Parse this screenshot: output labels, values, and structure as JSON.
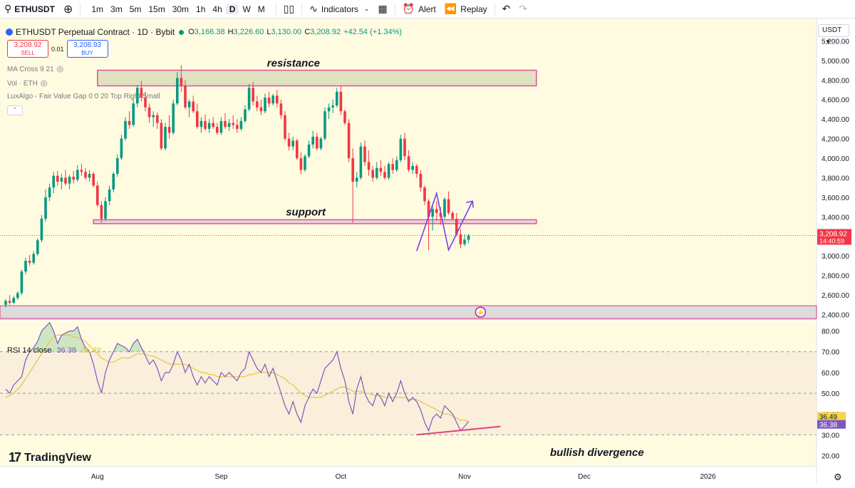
{
  "toolbar": {
    "symbol": "ETHUSDT",
    "timeframes": [
      "1m",
      "3m",
      "5m",
      "15m",
      "30m",
      "1h",
      "4h",
      "D",
      "W",
      "M"
    ],
    "active_timeframe": "D",
    "indicators_label": "Indicators",
    "alert_label": "Alert",
    "replay_label": "Replay"
  },
  "legend": {
    "title": "ETHUSDT Perpetual Contract · 1D · Bybit",
    "o_label": "O",
    "o": "3,166.38",
    "h_label": "H",
    "h": "3,226.60",
    "l_label": "L",
    "l": "3,130.00",
    "c_label": "C",
    "c": "3,208.92",
    "change": "+42.54 (+1.34%)",
    "sell_price": "3,208.92",
    "sell_label": "SELL",
    "buy_price": "3,208.93",
    "buy_label": "BUY",
    "spread": "0.01",
    "ind1": "MA Cross 9 21",
    "ind2": "Vol · ETH",
    "ind3": "LuxAlgo - Fair Value Gap 0 0 20 Top Right Small",
    "currency": "USDT"
  },
  "rsi_legend": {
    "label": "RSI 14 close",
    "v1": "36.38",
    "v2": "36.49"
  },
  "branding": {
    "logo_text": "TradingView"
  },
  "colors": {
    "up": "#089981",
    "down": "#f23645",
    "zone_border": "#e0529a",
    "zone_fill": "#d9dcb8",
    "bg": "#fffbe0",
    "rsi": "#7e57c2",
    "rsi_ma": "#e5c44a",
    "arrow": "#7b3fe4"
  },
  "chart_data": [
    {
      "type": "candlestick",
      "title": "ETHUSDT Perpetual Contract · 1D · Bybit",
      "ylim": [
        2360,
        5400
      ],
      "y_ticks": [
        2400,
        2600,
        2800,
        3000,
        3200,
        3400,
        3600,
        3800,
        4000,
        4200,
        4400,
        4600,
        4800,
        5000,
        5200
      ],
      "y_tick_labels": [
        "2,400.00",
        "2,600.00",
        "2,800.00",
        "3,000.00",
        "3,200.00",
        "3,400.00",
        "3,600.00",
        "3,800.00",
        "4,000.00",
        "4,200.00",
        "4,400.00",
        "4,600.00",
        "4,800.00",
        "5,000.00",
        "5,200.00"
      ],
      "x_labels": [
        {
          "day": 23,
          "label": "Aug"
        },
        {
          "day": 54,
          "label": "Sep"
        },
        {
          "day": 84,
          "label": "Oct"
        },
        {
          "day": 115,
          "label": "Nov"
        },
        {
          "day": 145,
          "label": "Dec"
        },
        {
          "day": 176,
          "label": "2026"
        }
      ],
      "last_price": "3,208.92",
      "countdown": "14:40:59",
      "candles": [
        [
          2500,
          2560,
          2470,
          2540
        ],
        [
          2540,
          2600,
          2500,
          2520
        ],
        [
          2520,
          2590,
          2510,
          2570
        ],
        [
          2570,
          2640,
          2550,
          2620
        ],
        [
          2620,
          2860,
          2600,
          2840
        ],
        [
          2840,
          2980,
          2810,
          2950
        ],
        [
          2950,
          3010,
          2900,
          2930
        ],
        [
          2930,
          3050,
          2910,
          3020
        ],
        [
          3020,
          3180,
          3000,
          3160
        ],
        [
          3160,
          3420,
          3140,
          3380
        ],
        [
          3380,
          3680,
          3350,
          3600
        ],
        [
          3600,
          3740,
          3560,
          3700
        ],
        [
          3700,
          3860,
          3640,
          3820
        ],
        [
          3820,
          3870,
          3720,
          3760
        ],
        [
          3760,
          3840,
          3680,
          3800
        ],
        [
          3800,
          3880,
          3720,
          3740
        ],
        [
          3740,
          3830,
          3680,
          3810
        ],
        [
          3810,
          3870,
          3740,
          3780
        ],
        [
          3780,
          3930,
          3760,
          3880
        ],
        [
          3880,
          3940,
          3820,
          3860
        ],
        [
          3860,
          3900,
          3780,
          3800
        ],
        [
          3800,
          3880,
          3760,
          3840
        ],
        [
          3840,
          3860,
          3700,
          3720
        ],
        [
          3720,
          3760,
          3500,
          3520
        ],
        [
          3520,
          3560,
          3340,
          3380
        ],
        [
          3380,
          3600,
          3360,
          3560
        ],
        [
          3560,
          3720,
          3520,
          3680
        ],
        [
          3680,
          3860,
          3650,
          3840
        ],
        [
          3840,
          4040,
          3810,
          4000
        ],
        [
          4000,
          4240,
          3980,
          4200
        ],
        [
          4200,
          4420,
          4180,
          4380
        ],
        [
          4380,
          4480,
          4300,
          4340
        ],
        [
          4340,
          4600,
          4320,
          4560
        ],
        [
          4560,
          4750,
          4520,
          4720
        ],
        [
          4720,
          4790,
          4580,
          4620
        ],
        [
          4620,
          4680,
          4480,
          4520
        ],
        [
          4520,
          4560,
          4360,
          4420
        ],
        [
          4420,
          4480,
          4320,
          4440
        ],
        [
          4440,
          4470,
          4300,
          4360
        ],
        [
          4360,
          4400,
          4080,
          4100
        ],
        [
          4100,
          4360,
          4080,
          4320
        ],
        [
          4320,
          4440,
          4200,
          4260
        ],
        [
          4260,
          4600,
          4240,
          4560
        ],
        [
          4560,
          4880,
          4540,
          4820
        ],
        [
          4820,
          4950,
          4680,
          4740
        ],
        [
          4740,
          4800,
          4500,
          4520
        ],
        [
          4520,
          4600,
          4420,
          4580
        ],
        [
          4580,
          4640,
          4460,
          4480
        ],
        [
          4480,
          4560,
          4300,
          4320
        ],
        [
          4320,
          4420,
          4260,
          4380
        ],
        [
          4380,
          4450,
          4280,
          4300
        ],
        [
          4300,
          4400,
          4260,
          4360
        ],
        [
          4360,
          4420,
          4300,
          4320
        ],
        [
          4320,
          4360,
          4240,
          4260
        ],
        [
          4260,
          4420,
          4240,
          4380
        ],
        [
          4380,
          4460,
          4300,
          4320
        ],
        [
          4320,
          4400,
          4280,
          4360
        ],
        [
          4360,
          4440,
          4300,
          4340
        ],
        [
          4340,
          4400,
          4260,
          4300
        ],
        [
          4300,
          4420,
          4280,
          4380
        ],
        [
          4380,
          4540,
          4360,
          4500
        ],
        [
          4500,
          4760,
          4480,
          4720
        ],
        [
          4720,
          4780,
          4540,
          4580
        ],
        [
          4580,
          4640,
          4480,
          4520
        ],
        [
          4520,
          4600,
          4440,
          4480
        ],
        [
          4480,
          4660,
          4460,
          4620
        ],
        [
          4620,
          4680,
          4520,
          4560
        ],
        [
          4560,
          4660,
          4540,
          4640
        ],
        [
          4640,
          4700,
          4520,
          4560
        ],
        [
          4560,
          4600,
          4400,
          4440
        ],
        [
          4440,
          4480,
          4180,
          4200
        ],
        [
          4200,
          4260,
          4080,
          4120
        ],
        [
          4120,
          4220,
          4080,
          4180
        ],
        [
          4180,
          4200,
          3980,
          4000
        ],
        [
          4000,
          4060,
          3840,
          3880
        ],
        [
          3880,
          4040,
          3860,
          4020
        ],
        [
          4020,
          4180,
          4000,
          4140
        ],
        [
          4140,
          4280,
          4100,
          4220
        ],
        [
          4220,
          4260,
          4080,
          4100
        ],
        [
          4100,
          4220,
          4080,
          4200
        ],
        [
          4200,
          4520,
          4180,
          4480
        ],
        [
          4480,
          4560,
          4400,
          4520
        ],
        [
          4520,
          4600,
          4460,
          4540
        ],
        [
          4540,
          4720,
          4520,
          4680
        ],
        [
          4680,
          4740,
          4440,
          4480
        ],
        [
          4480,
          4500,
          4340,
          4360
        ],
        [
          4360,
          4400,
          3960,
          4000
        ],
        [
          4000,
          4100,
          3340,
          3760
        ],
        [
          3760,
          3860,
          3700,
          3800
        ],
        [
          3800,
          4160,
          3780,
          4120
        ],
        [
          4120,
          4180,
          3920,
          3960
        ],
        [
          3960,
          4080,
          3820,
          3880
        ],
        [
          3880,
          3920,
          3760,
          3800
        ],
        [
          3800,
          3960,
          3780,
          3900
        ],
        [
          3900,
          3980,
          3820,
          3860
        ],
        [
          3860,
          3920,
          3780,
          3800
        ],
        [
          3800,
          3960,
          3780,
          3940
        ],
        [
          3940,
          4000,
          3840,
          3880
        ],
        [
          3880,
          4020,
          3860,
          3980
        ],
        [
          3980,
          4240,
          3960,
          4200
        ],
        [
          4200,
          4260,
          3980,
          4020
        ],
        [
          4020,
          4080,
          3860,
          3880
        ],
        [
          3880,
          3960,
          3840,
          3920
        ],
        [
          3920,
          3940,
          3800,
          3840
        ],
        [
          3840,
          3880,
          3660,
          3700
        ],
        [
          3700,
          3720,
          3520,
          3560
        ],
        [
          3560,
          3580,
          3060,
          3400
        ],
        [
          3400,
          3520,
          3260,
          3480
        ],
        [
          3480,
          3560,
          3360,
          3440
        ],
        [
          3440,
          3500,
          3320,
          3400
        ],
        [
          3400,
          3600,
          3380,
          3580
        ],
        [
          3580,
          3660,
          3420,
          3440
        ],
        [
          3440,
          3460,
          3360,
          3380
        ],
        [
          3380,
          3440,
          3200,
          3220
        ],
        [
          3220,
          3280,
          3080,
          3120
        ],
        [
          3120,
          3220,
          3100,
          3166
        ],
        [
          3166,
          3227,
          3130,
          3209
        ]
      ],
      "annotations": {
        "resistance": {
          "label": "resistance",
          "low": 4740,
          "high": 4900,
          "from_day": 23,
          "to_day": 133
        },
        "support": {
          "label": "support",
          "low": 3330,
          "high": 3370,
          "from_day": 22,
          "to_day": 133
        },
        "bottom_zone": {
          "low": 2360,
          "high": 2490
        },
        "zigzag": [
          [
            103,
            3050
          ],
          [
            108,
            3640
          ],
          [
            111,
            3060
          ],
          [
            117,
            3560
          ]
        ]
      }
    },
    {
      "type": "line",
      "title": "RSI 14 close",
      "ylim": [
        15,
        85
      ],
      "y_ticks": [
        20,
        30,
        40,
        50,
        60,
        70,
        80
      ],
      "y_tick_labels": [
        "20.00",
        "30.00",
        "40.00",
        "50.00",
        "60.00",
        "70.00",
        "80.00"
      ],
      "band_upper": 70,
      "band_middle": 50,
      "band_lower": 30,
      "series": [
        {
          "name": "RSI",
          "values": [
            52,
            50,
            54,
            56,
            58,
            66,
            70,
            72,
            75,
            80,
            82,
            84,
            80,
            74,
            78,
            79,
            80,
            80,
            82,
            76,
            72,
            70,
            64,
            56,
            50,
            60,
            66,
            70,
            74,
            73,
            72,
            70,
            74,
            76,
            72,
            68,
            64,
            66,
            62,
            56,
            60,
            60,
            64,
            70,
            66,
            60,
            64,
            58,
            54,
            58,
            55,
            58,
            56,
            54,
            60,
            58,
            60,
            58,
            56,
            60,
            62,
            70,
            66,
            62,
            60,
            64,
            58,
            62,
            56,
            50,
            44,
            40,
            46,
            40,
            36,
            44,
            48,
            52,
            50,
            56,
            62,
            64,
            66,
            70,
            62,
            56,
            46,
            40,
            52,
            58,
            50,
            46,
            44,
            50,
            48,
            44,
            50,
            46,
            50,
            56,
            50,
            46,
            48,
            46,
            42,
            36,
            32,
            38,
            40,
            38,
            44,
            42,
            40,
            36,
            32,
            34,
            36.38
          ]
        },
        {
          "name": "RSI-based MA",
          "values": [
            48,
            49,
            50,
            52,
            54,
            57,
            60,
            63,
            66,
            69,
            72,
            75,
            77,
            78,
            78,
            78,
            78,
            77,
            77,
            76,
            75,
            73,
            71,
            69,
            67,
            66,
            65,
            65,
            66,
            67,
            67,
            67,
            68,
            69,
            69,
            69,
            68,
            68,
            67,
            66,
            65,
            64,
            64,
            64,
            64,
            64,
            63,
            62,
            61,
            60,
            60,
            59,
            59,
            58,
            58,
            58,
            58,
            58,
            58,
            58,
            58,
            59,
            59,
            60,
            60,
            60,
            60,
            60,
            59,
            58,
            57,
            55,
            54,
            52,
            50,
            49,
            48,
            48,
            48,
            48,
            49,
            50,
            51,
            52,
            53,
            53,
            52,
            51,
            51,
            51,
            50,
            50,
            49,
            49,
            49,
            48,
            48,
            48,
            48,
            48,
            48,
            47,
            47,
            47,
            46,
            45,
            44,
            43,
            42,
            41,
            40,
            40,
            39,
            38,
            37,
            37,
            36.49
          ]
        }
      ],
      "annotations": {
        "label": "bullish divergence",
        "line": [
          [
            103,
            30
          ],
          [
            124,
            34
          ]
        ]
      }
    }
  ]
}
